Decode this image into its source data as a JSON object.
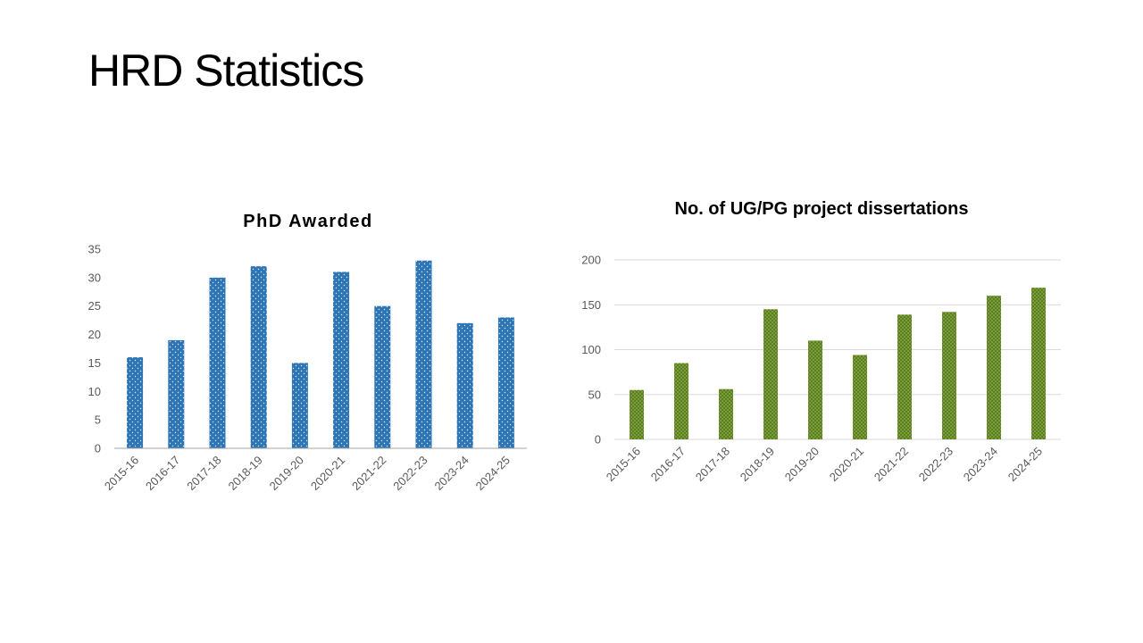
{
  "slide": {
    "title": "HRD Statistics"
  },
  "chart_data": [
    {
      "type": "bar",
      "title": "PhD Awarded",
      "categories": [
        "2015-16",
        "2016-17",
        "2017-18",
        "2018-19",
        "2019-20",
        "2020-21",
        "2021-22",
        "2022-23",
        "2023-24",
        "2024-25"
      ],
      "values": [
        16,
        19,
        30,
        32,
        15,
        31,
        25,
        33,
        22,
        23
      ],
      "ylim": [
        0,
        35
      ],
      "yticks": [
        0,
        5,
        10,
        15,
        20,
        25,
        30,
        35
      ],
      "xlabel": "",
      "ylabel": "",
      "grid": false,
      "color": "#2E75B6",
      "pattern": "dotted"
    },
    {
      "type": "bar",
      "title": "No. of UG/PG project dissertations",
      "categories": [
        "2015-16",
        "2016-17",
        "2017-18",
        "2018-19",
        "2019-20",
        "2020-21",
        "2021-22",
        "2022-23",
        "2023-24",
        "2024-25"
      ],
      "values": [
        55,
        85,
        56,
        145,
        110,
        94,
        139,
        142,
        160,
        169
      ],
      "ylim": [
        0,
        200
      ],
      "yticks": [
        0,
        50,
        100,
        150,
        200
      ],
      "xlabel": "",
      "ylabel": "",
      "grid": true,
      "color": "#6B8E23",
      "pattern": "dotted"
    }
  ]
}
